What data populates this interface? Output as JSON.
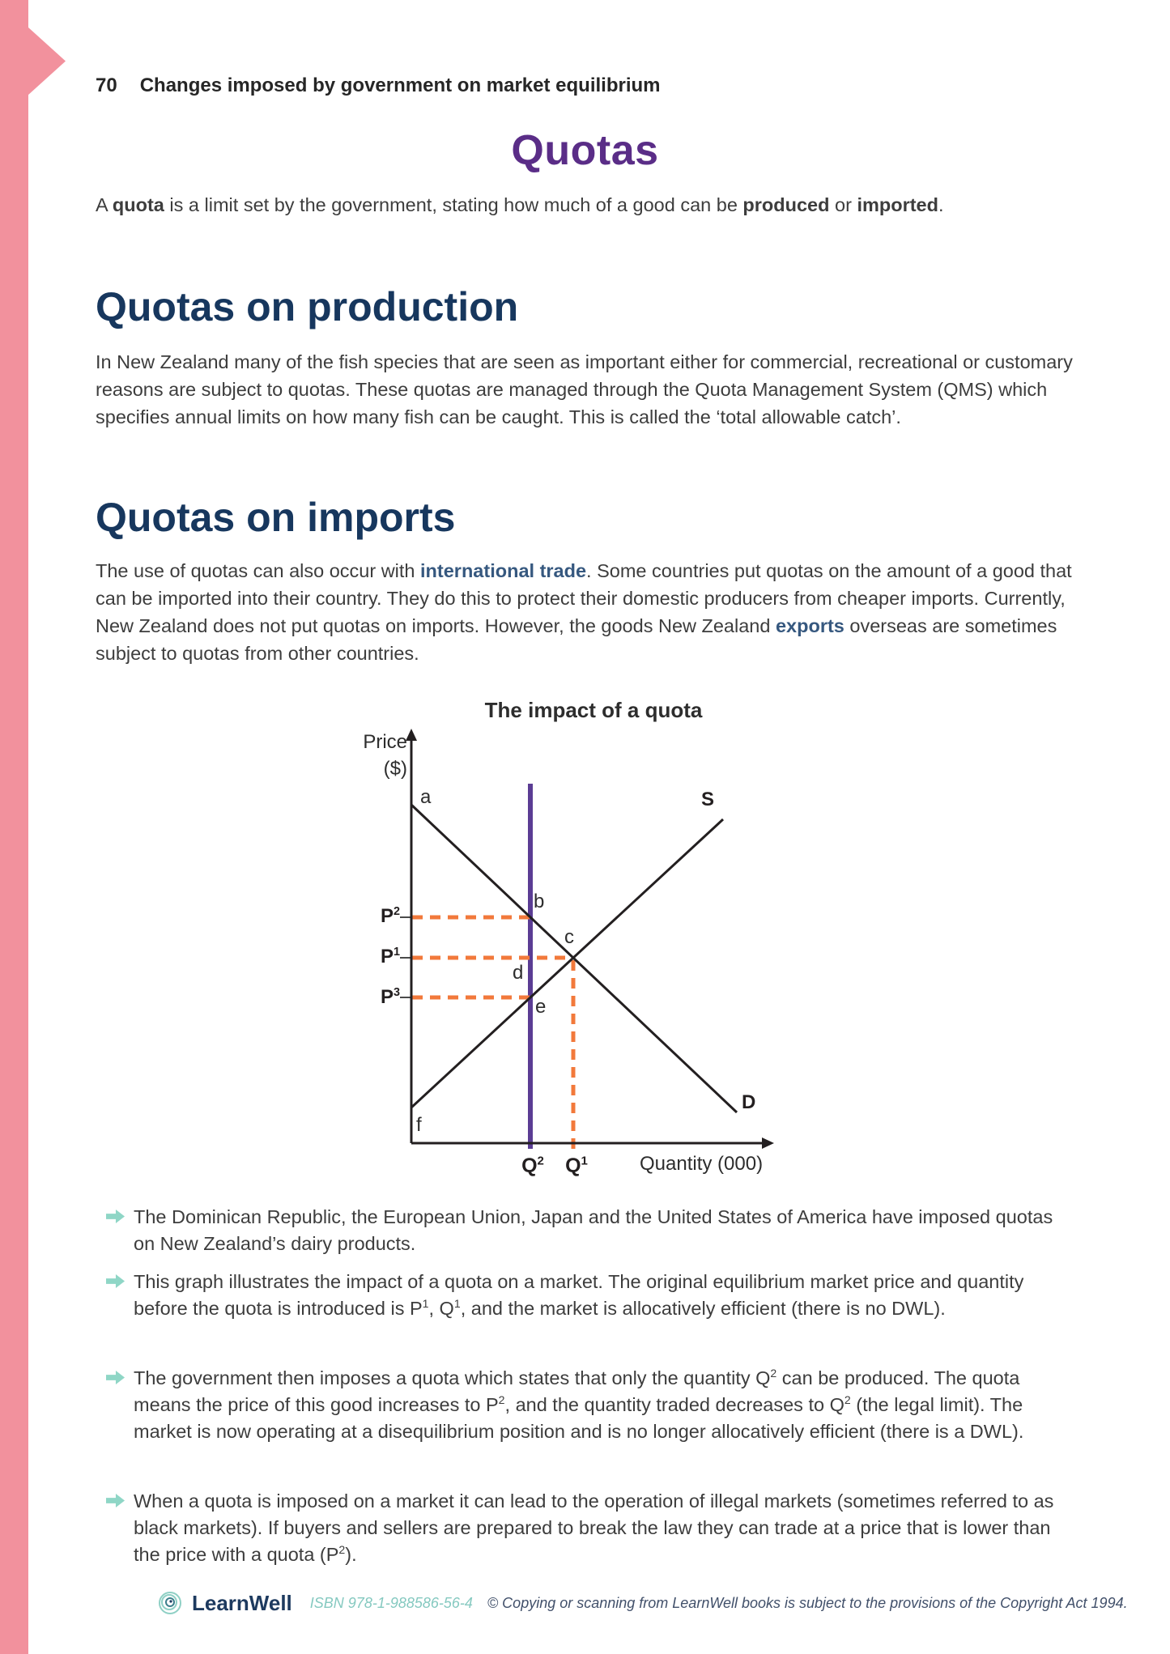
{
  "page": {
    "number": "70",
    "chapter": "Changes imposed by government on market equilibrium"
  },
  "title": "Quotas",
  "intro_segments": [
    {
      "t": "A "
    },
    {
      "t": "quota",
      "b": true
    },
    {
      "t": " is a limit set by the government, stating how much of a good can be "
    },
    {
      "t": "produced",
      "b": true
    },
    {
      "t": " or "
    },
    {
      "t": "imported",
      "b": true
    },
    {
      "t": "."
    }
  ],
  "sections": [
    {
      "heading": "Quotas on production",
      "para_segments": [
        {
          "t": "In New Zealand many of the fish species that are seen as important either for commercial, recreational or customary reasons are subject to quotas. These quotas are managed through the Quota Management System (QMS) which specifies annual limits on how many fish can be caught. This is called the ‘total allowable catch’."
        }
      ]
    },
    {
      "heading": "Quotas on imports",
      "para_segments": [
        {
          "t": "The use of quotas can also occur with "
        },
        {
          "t": "international trade",
          "c": "navy"
        },
        {
          "t": ". Some countries put quotas on the amount of a good that can be imported into their country. They do this to protect their domestic producers from cheaper imports. Currently, New Zealand does not put quotas on imports. However, the goods New Zealand "
        },
        {
          "t": "exports",
          "c": "navy"
        },
        {
          "t": " overseas are sometimes subject to quotas from other countries."
        }
      ]
    }
  ],
  "figure": {
    "title": "The impact of a quota",
    "y_axis_label": "Price",
    "y_axis_unit": "($)",
    "x_axis_label": "Quantity (000)",
    "supply_label": "S",
    "demand_label": "D",
    "point_labels": {
      "a": "a",
      "b": "b",
      "c": "c",
      "d": "d",
      "e": "e",
      "f": "f"
    },
    "p2_segments": [
      {
        "t": "P"
      },
      {
        "t": "2",
        "sup": true
      }
    ],
    "p1_segments": [
      {
        "t": "P"
      },
      {
        "t": "1",
        "sup": true
      }
    ],
    "p3_segments": [
      {
        "t": "P"
      },
      {
        "t": "3",
        "sup": true
      }
    ],
    "q2_segments": [
      {
        "t": "Q"
      },
      {
        "t": "2",
        "sup": true
      }
    ],
    "q1_segments": [
      {
        "t": "Q"
      },
      {
        "t": "1",
        "sup": true
      }
    ],
    "colors": {
      "quota_line": "#5b3d94",
      "dashed_lines": "#f2793b",
      "curves": "#231f20"
    }
  },
  "chart_data": {
    "type": "line",
    "title": "The impact of a quota",
    "xlabel": "Quantity (000)",
    "ylabel": "Price ($)",
    "axes_numeric": false,
    "series": [
      {
        "name": "D (demand)",
        "points": [
          [
            0,
            8.3
          ],
          [
            8.9,
            0.8
          ]
        ]
      },
      {
        "name": "S (supply)",
        "points": [
          [
            0,
            1.0
          ],
          [
            8.5,
            8.0
          ]
        ]
      },
      {
        "name": "Quota (vertical line at Q2)",
        "points": [
          [
            3.3,
            0
          ],
          [
            3.3,
            8.8
          ]
        ]
      }
    ],
    "reference_lines": {
      "P2": {
        "axis": "y",
        "value": 5.5,
        "style": "dashed",
        "meets": "demand at quota line (point b)"
      },
      "P1": {
        "axis": "y",
        "value": 4.6,
        "style": "dashed",
        "meets": "S and D equilibrium (point c)"
      },
      "P3": {
        "axis": "y",
        "value": 3.6,
        "style": "dashed",
        "meets": "supply at quota line (point e)"
      },
      "Q1": {
        "axis": "x",
        "value": 4.4,
        "style": "dashed",
        "meets": "equilibrium quantity"
      }
    },
    "labeled_points": {
      "a": "top of demand curve at price axis",
      "b": "demand curve at quota quantity Q2 (price P2)",
      "c": "equilibrium of S and D (P1, Q1)",
      "d": "on quota line between b and e",
      "e": "supply curve at quota quantity Q2 (price P3)",
      "f": "bottom of supply curve at price axis"
    },
    "x_ticks": [
      "Q2",
      "Q1"
    ],
    "y_ticks": [
      "P2",
      "P1",
      "P3"
    ],
    "legend_position": "none"
  },
  "bullets": [
    {
      "segments": [
        {
          "t": "The Dominican Republic, the European Union, Japan and the United States of America have imposed quotas on New Zealand’s dairy products."
        }
      ]
    },
    {
      "segments": [
        {
          "t": "This graph illustrates the impact of a quota on a market. The original equilibrium market price and quantity before the quota is introduced is P"
        },
        {
          "t": "1",
          "sup": true
        },
        {
          "t": ", Q"
        },
        {
          "t": "1",
          "sup": true
        },
        {
          "t": ", and the market is allocatively efficient (there is no DWL)."
        }
      ]
    },
    {
      "segments": [
        {
          "t": "The government then imposes a quota which states that only the quantity Q"
        },
        {
          "t": "2",
          "sup": true
        },
        {
          "t": " can be produced. The quota means the price of this good increases to P"
        },
        {
          "t": "2",
          "sup": true
        },
        {
          "t": ", and the quantity traded decreases to Q"
        },
        {
          "t": "2",
          "sup": true
        },
        {
          "t": " (the legal limit). The market is now operating at a disequilibrium position and is no longer allocatively efficient (there is a DWL)."
        }
      ]
    },
    {
      "segments": [
        {
          "t": "When a quota is imposed on a market it can lead to the operation of illegal markets (sometimes referred to as black markets). If buyers and sellers are prepared to break the law they can trade at a price that is lower than the price with a quota (P"
        },
        {
          "t": "2",
          "sup": true
        },
        {
          "t": ")."
        }
      ]
    }
  ],
  "footer": {
    "brand": "LearnWell",
    "isbn": "ISBN 978-1-988586-56-4",
    "copyright": "© Copying or scanning from LearnWell books is subject to the provisions of the Copyright Act 1994."
  },
  "colors": {
    "band_pink": "#f2919d",
    "title_purple": "#5a2d87",
    "heading_navy": "#17375e",
    "bullet_teal": "#8fd6c6",
    "body_text": "#3d3d3d"
  }
}
